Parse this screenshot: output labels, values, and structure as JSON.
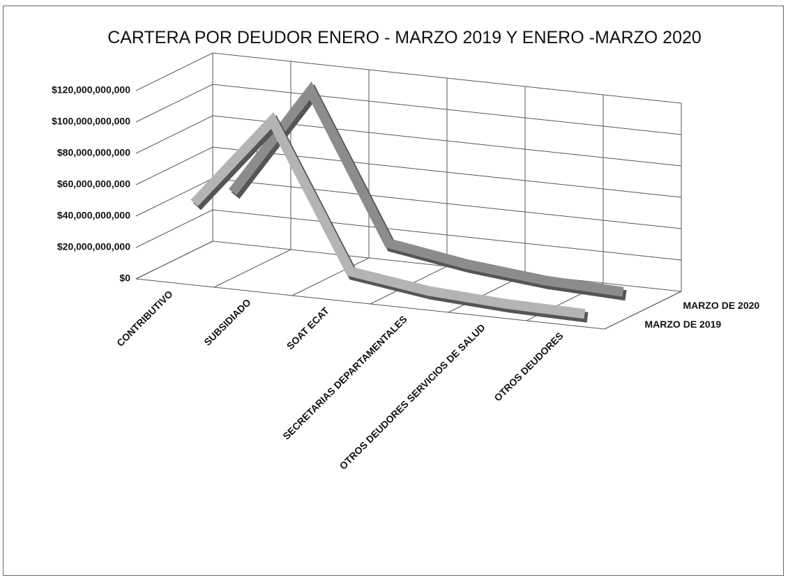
{
  "chart_data": {
    "type": "line3d",
    "title": "CARTERA POR DEUDOR  ENERO - MARZO 2019 Y ENERO -MARZO 2020",
    "categories": [
      "CONTRIBUTIVO",
      "SUBSIDIADO",
      "SOAT ECAT",
      "SECRETARIAS DEPARTAMENTALES",
      "OTROS DEUDORES SERVICIOS DE SALUD",
      "OTROS DEUDORES"
    ],
    "series": [
      {
        "name": "MARZO DE 2019",
        "color": "#b4b4b4",
        "values": [
          45000000000,
          103000000000,
          12000000000,
          5000000000,
          2000000000,
          1000000000
        ]
      },
      {
        "name": "MARZO DE 2020",
        "color": "#8c8c8c",
        "values": [
          40000000000,
          110000000000,
          18000000000,
          10000000000,
          5000000000,
          3000000000
        ]
      }
    ],
    "ylim": [
      0,
      120000000000
    ],
    "yticks": [
      {
        "value": 0,
        "label": "$0"
      },
      {
        "value": 20000000000,
        "label": "$20,000,000,000"
      },
      {
        "value": 40000000000,
        "label": "$40,000,000,000"
      },
      {
        "value": 60000000000,
        "label": "$60,000,000,000"
      },
      {
        "value": 80000000000,
        "label": "$80,000,000,000"
      },
      {
        "value": 100000000000,
        "label": "$100,000,000,000"
      },
      {
        "value": 120000000000,
        "label": "$120,000,000,000"
      }
    ],
    "grid": true
  }
}
